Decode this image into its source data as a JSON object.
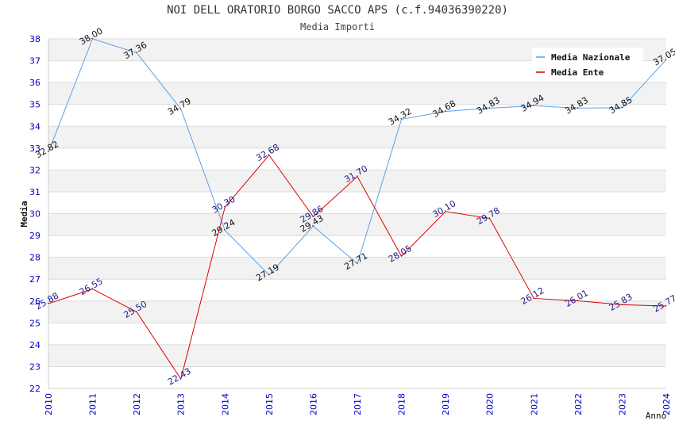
{
  "title": "NOI DELL ORATORIO BORGO SACCO APS (c.f.94036390220)",
  "subtitle": "Media Importi",
  "colors": {
    "nazionale": "#5aa0e6",
    "ente": "#dd0000",
    "label_nazionale": "#111111",
    "label_ente": "#1a1a8a",
    "axis_text": "#0000cc",
    "band": "#f2f2f2",
    "grid": "#dcdcdc"
  },
  "chart_data": {
    "type": "line",
    "title": "NOI DELL ORATORIO BORGO SACCO APS (c.f.94036390220)",
    "subtitle": "Media Importi",
    "xlabel": "Anno",
    "ylabel": "Media",
    "x": [
      2010,
      2011,
      2012,
      2013,
      2014,
      2015,
      2016,
      2017,
      2018,
      2019,
      2020,
      2021,
      2022,
      2023,
      2024
    ],
    "ylim": [
      22,
      38
    ],
    "yticks": [
      22,
      23,
      24,
      25,
      26,
      27,
      28,
      29,
      30,
      31,
      32,
      33,
      34,
      35,
      36,
      37,
      38
    ],
    "grid": true,
    "legend_position": "top-right",
    "series": [
      {
        "name": "Media Nazionale",
        "values": [
          32.82,
          38.0,
          37.36,
          34.79,
          29.24,
          27.19,
          29.43,
          27.71,
          34.32,
          34.68,
          34.83,
          34.94,
          34.83,
          34.85,
          37.05
        ],
        "labels": [
          "32.82",
          "38.00",
          "37.36",
          "34.79",
          "29.24",
          "27.19",
          "29.43",
          "27.71",
          "34.32",
          "34.68",
          "34.83",
          "34.94",
          "34.83",
          "34.85",
          "37.05"
        ]
      },
      {
        "name": "Media Ente",
        "values": [
          25.88,
          26.55,
          25.5,
          22.43,
          30.3,
          32.68,
          29.86,
          31.7,
          28.05,
          30.1,
          29.78,
          26.12,
          26.01,
          25.83,
          25.77
        ],
        "labels": [
          "25.88",
          "26.55",
          "25.50",
          "22.43",
          "30.30",
          "32.68",
          "29.86",
          "31.70",
          "28.05",
          "30.10",
          "29.78",
          "26.12",
          "26.01",
          "25.83",
          "25.77"
        ]
      }
    ]
  }
}
